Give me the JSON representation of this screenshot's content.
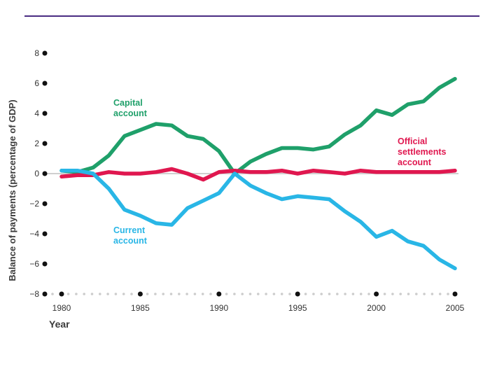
{
  "chart_data": {
    "type": "line",
    "ylabel": "Balance of payments (percentage of GDP)",
    "xlabel": "Year",
    "ylim": [
      -8,
      8
    ],
    "xlim": [
      1980,
      2005
    ],
    "yticks": [
      8,
      6,
      4,
      2,
      0,
      -2,
      -4,
      -6,
      -8
    ],
    "ytick_labels": [
      "8",
      "6",
      "4",
      "2",
      "0",
      "−2",
      "−4",
      "−6",
      "−8"
    ],
    "xticks": [
      1980,
      1985,
      1990,
      1995,
      2000,
      2005
    ],
    "xtick_labels": [
      "1980",
      "1985",
      "1990",
      "1995",
      "2000",
      "2005"
    ],
    "series": [
      {
        "name": "Capital account",
        "label_lines": [
          "Capital",
          "account"
        ],
        "color": "#1fa06a",
        "x": [
          1980,
          1981,
          1982,
          1983,
          1984,
          1985,
          1986,
          1987,
          1988,
          1989,
          1990,
          1991,
          1992,
          1993,
          1994,
          1995,
          1996,
          1997,
          1998,
          1999,
          2000,
          2001,
          2002,
          2003,
          2004,
          2005
        ],
        "values": [
          0.2,
          0.1,
          0.4,
          1.2,
          2.5,
          2.9,
          3.3,
          3.2,
          2.5,
          2.3,
          1.5,
          0.0,
          0.8,
          1.3,
          1.7,
          1.7,
          1.6,
          1.8,
          2.6,
          3.2,
          4.2,
          3.9,
          4.6,
          4.8,
          5.7,
          6.3
        ]
      },
      {
        "name": "Official settlements account",
        "label_lines": [
          "Official",
          "settlements",
          "account"
        ],
        "color": "#e0174f",
        "x": [
          1980,
          1981,
          1982,
          1983,
          1984,
          1985,
          1986,
          1987,
          1988,
          1989,
          1990,
          1991,
          1992,
          1993,
          1994,
          1995,
          1996,
          1997,
          1998,
          1999,
          2000,
          2001,
          2002,
          2003,
          2004,
          2005
        ],
        "values": [
          -0.2,
          -0.1,
          -0.1,
          0.1,
          0.0,
          0.0,
          0.1,
          0.3,
          0.0,
          -0.4,
          0.1,
          0.2,
          0.1,
          0.1,
          0.2,
          0.0,
          0.2,
          0.1,
          0.0,
          0.2,
          0.1,
          0.1,
          0.1,
          0.1,
          0.1,
          0.2
        ]
      },
      {
        "name": "Current account",
        "label_lines": [
          "Current",
          "account"
        ],
        "color": "#29b6e6",
        "x": [
          1980,
          1981,
          1982,
          1983,
          1984,
          1985,
          1986,
          1987,
          1988,
          1989,
          1990,
          1991,
          1992,
          1993,
          1994,
          1995,
          1996,
          1997,
          1998,
          1999,
          2000,
          2001,
          2002,
          2003,
          2004,
          2005
        ],
        "values": [
          0.2,
          0.2,
          0.0,
          -1.0,
          -2.4,
          -2.8,
          -3.3,
          -3.4,
          -2.3,
          -1.8,
          -1.3,
          0.0,
          -0.8,
          -1.3,
          -1.7,
          -1.5,
          -1.6,
          -1.7,
          -2.5,
          -3.2,
          -4.2,
          -3.8,
          -4.5,
          -4.8,
          -5.7,
          -6.3
        ]
      }
    ]
  }
}
